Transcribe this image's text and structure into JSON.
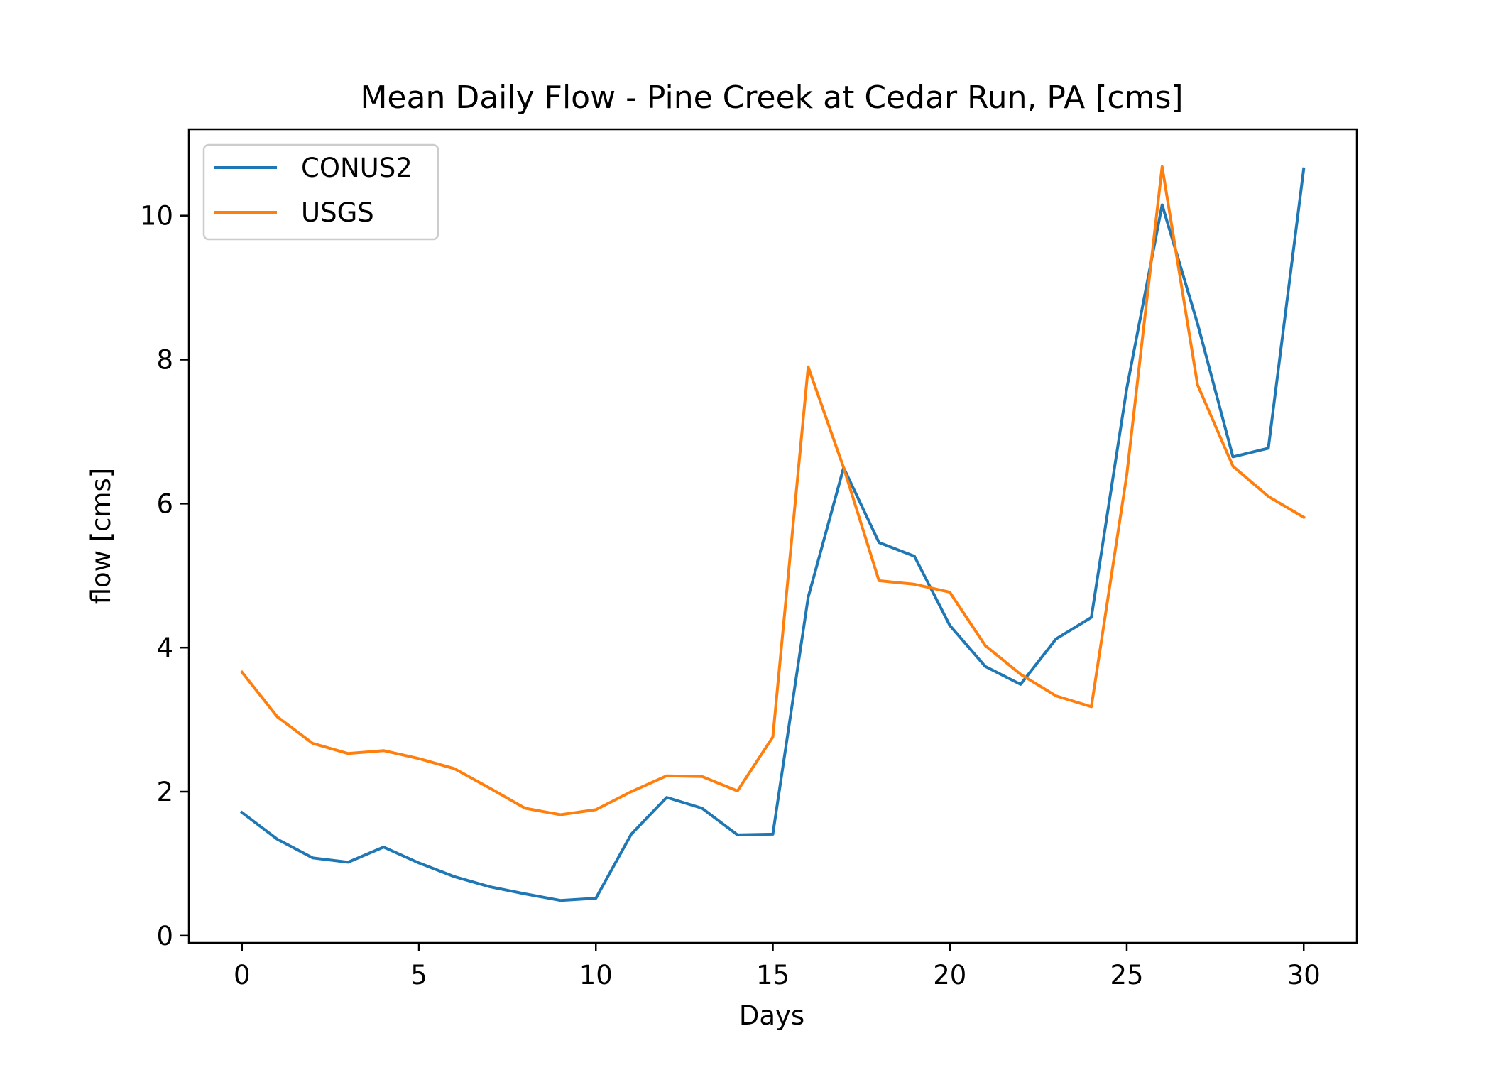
{
  "chart_data": {
    "type": "line",
    "title": "Mean Daily Flow - Pine Creek at Cedar Run, PA [cms]",
    "xlabel": "Days",
    "ylabel": "flow [cms]",
    "xlim": [
      -1.5,
      31.5
    ],
    "ylim": [
      -0.1,
      11.2
    ],
    "xticks": [
      0,
      5,
      10,
      15,
      20,
      25,
      30
    ],
    "yticks": [
      0,
      2,
      4,
      6,
      8,
      10
    ],
    "grid": false,
    "legend": "upper left",
    "x": [
      0,
      1,
      2,
      3,
      4,
      5,
      6,
      7,
      8,
      9,
      10,
      11,
      12,
      13,
      14,
      15,
      16,
      17,
      18,
      19,
      20,
      21,
      22,
      23,
      24,
      25,
      26,
      27,
      28,
      29,
      30
    ],
    "series": [
      {
        "name": "CONUS2",
        "color": "#1f77b4",
        "values": [
          1.71,
          1.34,
          1.08,
          1.02,
          1.23,
          1.01,
          0.82,
          0.68,
          0.58,
          0.49,
          0.52,
          1.41,
          1.92,
          1.77,
          1.4,
          1.41,
          4.7,
          6.5,
          5.46,
          5.27,
          4.31,
          3.74,
          3.49,
          4.12,
          4.42,
          7.6,
          10.15,
          8.5,
          6.65,
          6.77,
          10.65
        ]
      },
      {
        "name": "USGS",
        "color": "#ff7f0e",
        "values": [
          3.66,
          3.04,
          2.67,
          2.53,
          2.57,
          2.46,
          2.32,
          2.05,
          1.77,
          1.68,
          1.75,
          2.0,
          2.22,
          2.21,
          2.01,
          2.76,
          7.9,
          6.5,
          4.93,
          4.88,
          4.77,
          4.03,
          3.63,
          3.33,
          3.18,
          6.4,
          10.68,
          7.65,
          6.52,
          6.1,
          5.81
        ]
      }
    ]
  }
}
